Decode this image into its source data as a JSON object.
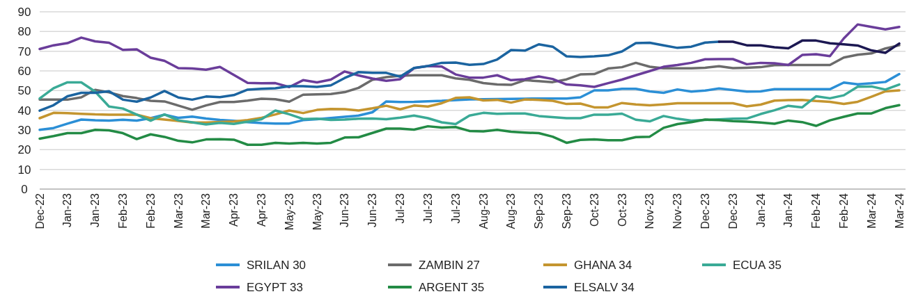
{
  "chart_data": {
    "type": "line",
    "ylim": [
      0,
      90
    ],
    "yticks": [
      0,
      10,
      20,
      30,
      40,
      50,
      60,
      70,
      80,
      90
    ],
    "categories": [
      "Dec-22",
      null,
      "Jan-23",
      null,
      "Jan-23",
      null,
      "Feb-23",
      null,
      "Feb-23",
      null,
      "Mar-23",
      null,
      "Mar-23",
      null,
      "Apr-23",
      null,
      "Apr-23",
      null,
      "May-23",
      null,
      "May-23",
      null,
      "Jun-23",
      null,
      "Jun-23",
      null,
      "Jul-23",
      null,
      "Jul-23",
      null,
      "Jul-23",
      null,
      "Aug-23",
      null,
      "Aug-23",
      null,
      "Sep-23",
      null,
      "Sep-23",
      null,
      "Oct-23",
      null,
      "Oct-23",
      null,
      "Nov-23",
      null,
      "Nov-23",
      null,
      "Dec-23",
      null,
      "Dec-23",
      null,
      "Jan-24",
      null,
      "Jan-24",
      null,
      "Feb-24",
      null,
      "Feb-24",
      null,
      "Mar-24",
      null,
      "Mar-24"
    ],
    "grid": "y",
    "legend": "bottom",
    "marker": "none",
    "line_style": "solid",
    "series": [
      {
        "name": "SRILAN 30",
        "color": "#2b8fd6",
        "values": [
          30.1,
          31,
          33.2,
          35.3,
          34.9,
          34.8,
          35.2,
          34.8,
          36,
          37.8,
          36.2,
          36.8,
          35.8,
          35.1,
          34.7,
          34,
          33.5,
          33.3,
          33.3,
          35,
          35.5,
          36.1,
          36.7,
          37.3,
          39,
          44.5,
          44.2,
          44.3,
          44.6,
          44.8,
          45.2,
          45.5,
          45.6,
          45.7,
          45.8,
          45.9,
          46,
          46,
          46,
          46.6,
          50.1,
          50.1,
          50.9,
          50.9,
          49.6,
          48.9,
          50.6,
          49.5,
          50,
          51.1,
          50.3,
          49.5,
          49.6,
          50.7,
          50.7,
          50.7,
          50.7,
          50.7,
          54.1,
          53.2,
          53.7,
          54.4,
          58.4
        ]
      },
      {
        "name": "ZAMBIN 27",
        "color": "#6b6b6b",
        "values": [
          45.4,
          45.4,
          45.4,
          46.6,
          50.4,
          49.1,
          47.2,
          46.2,
          44.8,
          44.5,
          42.4,
          40.3,
          42.5,
          44.2,
          44.2,
          44.9,
          45.9,
          45.6,
          44.4,
          47.9,
          48.1,
          48.3,
          49.2,
          51.4,
          55.5,
          56.8,
          57.5,
          57.8,
          57.8,
          57.8,
          56.2,
          55.5,
          53.8,
          53.1,
          52.9,
          55.3,
          54.8,
          54.3,
          55.7,
          58.2,
          58.4,
          61.2,
          61.9,
          64.1,
          62.1,
          61.3,
          61.3,
          61.3,
          61.6,
          62.4,
          61.4,
          61.6,
          61.9,
          62.9,
          63,
          63,
          63,
          63,
          66.8,
          68.2,
          68.9,
          71.4,
          73
        ]
      },
      {
        "name": "GHANA 34",
        "color": "#c4952f",
        "values": [
          36,
          38.7,
          38.6,
          38.2,
          37.9,
          37.8,
          37.8,
          37.8,
          36,
          35.3,
          34.6,
          33.8,
          33.8,
          34.1,
          34.3,
          35,
          36.2,
          37.9,
          39.9,
          38.6,
          40.2,
          40.7,
          40.6,
          39.9,
          41,
          42.3,
          40.5,
          42.4,
          41.9,
          43.6,
          46.3,
          46.6,
          45,
          45.3,
          43.9,
          45.5,
          45.3,
          44.8,
          43.2,
          43.4,
          41.5,
          41.5,
          43.7,
          43,
          42.5,
          43,
          43.6,
          43.6,
          43.6,
          43.6,
          43.6,
          42,
          42.9,
          44.9,
          45.2,
          45.3,
          44.7,
          44.3,
          43.2,
          44.3,
          46.9,
          49.6,
          50.1
        ]
      },
      {
        "name": "ECUA 35",
        "color": "#3aaa96",
        "values": [
          46,
          51.2,
          54.2,
          54.2,
          49.5,
          41.9,
          40.9,
          37.8,
          34.7,
          37.9,
          34.9,
          33.9,
          32.8,
          33.6,
          33.1,
          34.2,
          35.5,
          39.9,
          38,
          35.6,
          35.7,
          35.1,
          35.3,
          35.7,
          35.8,
          35.5,
          36.3,
          37.3,
          36,
          33.9,
          33,
          37.3,
          38.7,
          38.2,
          38.4,
          38.4,
          37.1,
          36.5,
          36,
          36,
          37.8,
          37.8,
          38.3,
          35.2,
          34.4,
          37.1,
          35.7,
          34.8,
          35.1,
          35.4,
          35.7,
          35.8,
          38.1,
          40,
          42.3,
          41.5,
          47.1,
          46.1,
          47.6,
          52,
          52.1,
          50.5,
          53.1
        ]
      },
      {
        "name": "EGYPT 33",
        "color": "#6a3d9a",
        "values": [
          71.1,
          73,
          74.1,
          76.9,
          75,
          74.3,
          70.7,
          70.9,
          66.7,
          65.1,
          61.4,
          61.2,
          60.6,
          62,
          58,
          53.9,
          53.7,
          53.8,
          51.8,
          55.3,
          54.2,
          55.6,
          59.7,
          57.7,
          56.1,
          55,
          55.8,
          61.4,
          62.5,
          62.2,
          58.2,
          56.6,
          56.6,
          57.8,
          55.3,
          55.8,
          57.2,
          55.9,
          53.1,
          52.7,
          51.9,
          53.8,
          55.6,
          57.8,
          59.9,
          62.1,
          63,
          64.1,
          65.9,
          66,
          66,
          63.4,
          64.1,
          63.9,
          63,
          68.1,
          68.5,
          67.5,
          76.5,
          83.6,
          82.3,
          81.1,
          82.3
        ]
      },
      {
        "name": "ARGENT 35",
        "color": "#238b45",
        "values": [
          25.6,
          26.9,
          28.4,
          28.4,
          30.1,
          29.8,
          28.4,
          25.4,
          27.8,
          26.5,
          24.5,
          23.7,
          25.2,
          25.3,
          25.1,
          22.5,
          22.5,
          23.5,
          23.1,
          23.5,
          23.1,
          23.5,
          26.2,
          26.3,
          28.5,
          30.7,
          30.7,
          30.2,
          31.9,
          31.2,
          31.5,
          29.5,
          29.3,
          30.1,
          29.1,
          28.7,
          28.4,
          26.6,
          23.5,
          25,
          25.2,
          24.8,
          24.8,
          26.4,
          26.6,
          31.1,
          33,
          34,
          35.3,
          35,
          34.5,
          34.2,
          33.8,
          33.2,
          34.8,
          34,
          32.1,
          34.9,
          36.7,
          38.4,
          38.4,
          41.1,
          42.6
        ]
      },
      {
        "name": "ELSALV 34",
        "color": "#1b64a0",
        "values": [
          39.8,
          42.6,
          47.1,
          48.9,
          48.9,
          49.7,
          45.4,
          44.4,
          46.5,
          49.8,
          46.5,
          45.4,
          47,
          46.7,
          47.7,
          50.5,
          50.9,
          51.2,
          52.2,
          52.2,
          51.9,
          52.7,
          56.4,
          59.4,
          59,
          59,
          57.1,
          61.5,
          62.5,
          64.1,
          64.2,
          63.1,
          63.5,
          65.8,
          70.6,
          70.3,
          73.5,
          72.3,
          67.4,
          67.1,
          67.4,
          67.9,
          69.9,
          74.1,
          74.3,
          73,
          71.7,
          72.3,
          74.4,
          74.8,
          null,
          null,
          null,
          null,
          null,
          null,
          null,
          null,
          null,
          null,
          null,
          null,
          null
        ]
      },
      {
        "color": "#1c1852",
        "values": [
          null,
          null,
          null,
          null,
          null,
          null,
          null,
          null,
          null,
          null,
          null,
          null,
          null,
          null,
          null,
          null,
          null,
          null,
          null,
          null,
          null,
          null,
          null,
          null,
          null,
          null,
          null,
          null,
          null,
          null,
          null,
          null,
          null,
          null,
          null,
          null,
          null,
          null,
          null,
          null,
          null,
          null,
          null,
          null,
          null,
          null,
          null,
          null,
          null,
          74.8,
          74.8,
          73,
          73,
          72,
          71.5,
          75.4,
          75.4,
          74,
          73.5,
          72.9,
          70.4,
          69.2,
          73.9
        ]
      }
    ]
  }
}
